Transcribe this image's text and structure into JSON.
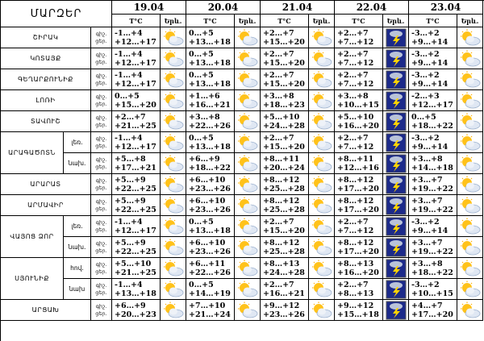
{
  "header": {
    "title": "ՄԱՐԶԵՐ",
    "dates": [
      "19.04",
      "20.04",
      "21.04",
      "22.04",
      "23.04"
    ],
    "temp_label": "T°C",
    "icon_label": "Երև.",
    "period_labels": [
      "գիշ.",
      "ցեր."
    ]
  },
  "regions": [
    {
      "name": "ՇԻՐԱԿ",
      "rows": [
        {
          "forecast": [
            [
              "-1…+4",
              "+12…+17"
            ],
            [
              "0…+5",
              "+13…+18"
            ],
            [
              "+2…+7",
              "+15…+20"
            ],
            [
              "+2…+7",
              "+7…+12"
            ],
            [
              "-3…+2",
              "+9…+14"
            ]
          ]
        }
      ]
    },
    {
      "name": "ԿՈՏԱՅՔ",
      "rows": [
        {
          "forecast": [
            [
              "-1…+4",
              "+12…+17"
            ],
            [
              "0…+5",
              "+13…+18"
            ],
            [
              "+2…+7",
              "+15…+20"
            ],
            [
              "+2…+7",
              "+7…+12"
            ],
            [
              "-3…+2",
              "+9…+14"
            ]
          ]
        }
      ]
    },
    {
      "name": "ԳԵՂԱՐՔՈՒՆԻՔ",
      "rows": [
        {
          "forecast": [
            [
              "-1…+4",
              "+12…+17"
            ],
            [
              "0…+5",
              "+13…+18"
            ],
            [
              "+2…+7",
              "+15…+20"
            ],
            [
              "+2…+7",
              "+7…+12"
            ],
            [
              "-3…+2",
              "+9…+14"
            ]
          ]
        }
      ]
    },
    {
      "name": "ԼՈՌԻ",
      "rows": [
        {
          "forecast": [
            [
              "0…+5",
              "+15…+20"
            ],
            [
              "+1…+6",
              "+16…+21"
            ],
            [
              "+3…+8",
              "+18…+23"
            ],
            [
              "+3…+8",
              "+10…+15"
            ],
            [
              "-2…+3",
              "+12…+17"
            ]
          ]
        }
      ]
    },
    {
      "name": "ՏԱՎՈՒՇ",
      "rows": [
        {
          "forecast": [
            [
              "+2…+7",
              "+21…+25"
            ],
            [
              "+3…+8",
              "+22…+26"
            ],
            [
              "+5…+10",
              "+24…+28"
            ],
            [
              "+5…+10",
              "+16…+20"
            ],
            [
              "0…+5",
              "+18…+22"
            ]
          ]
        }
      ]
    },
    {
      "name": "ԱՐԱԳԱԾՈՏՆ",
      "rows": [
        {
          "zone": "լեռ.",
          "forecast": [
            [
              "-1…+4",
              "+12…+17"
            ],
            [
              "0…+5",
              "+13…+18"
            ],
            [
              "+2…+7",
              "+15…+20"
            ],
            [
              "+2…+7",
              "+7…+12"
            ],
            [
              "-3…+2",
              "+9…+14"
            ]
          ]
        },
        {
          "zone": "նախ.",
          "forecast": [
            [
              "+5…+8",
              "+17…+21"
            ],
            [
              "+6…+9",
              "+18…+22"
            ],
            [
              "+8…+11",
              "+20…+24"
            ],
            [
              "+8…+11",
              "+12…+16"
            ],
            [
              "+3…+8",
              "+14…+18"
            ]
          ]
        }
      ]
    },
    {
      "name": "ԱՐԱՐԱՏ",
      "rows": [
        {
          "forecast": [
            [
              "+5…+9",
              "+22…+25"
            ],
            [
              "+6…+10",
              "+23…+26"
            ],
            [
              "+8…+12",
              "+25…+28"
            ],
            [
              "+8…+12",
              "+17…+20"
            ],
            [
              "+3…+7",
              "+19…+22"
            ]
          ]
        }
      ]
    },
    {
      "name": "ԱՐՄԱՎԻՐ",
      "rows": [
        {
          "forecast": [
            [
              "+5…+9",
              "+22…+25"
            ],
            [
              "+6…+10",
              "+23…+26"
            ],
            [
              "+8…+12",
              "+25…+28"
            ],
            [
              "+8…+12",
              "+17…+20"
            ],
            [
              "+3…+7",
              "+19…+22"
            ]
          ]
        }
      ]
    },
    {
      "name": "ՎԱՅՈՑ ՁՈՐ",
      "rows": [
        {
          "zone": "լեռ.",
          "forecast": [
            [
              "-1…+4",
              "+12…+17"
            ],
            [
              "0…+5",
              "+13…+18"
            ],
            [
              "+2…+7",
              "+15…+20"
            ],
            [
              "+2…+7",
              "+7…+12"
            ],
            [
              "-3…+2",
              "+9…+14"
            ]
          ]
        },
        {
          "zone": "նախ.",
          "forecast": [
            [
              "+5…+9",
              "+22…+25"
            ],
            [
              "+6…+10",
              "+23…+26"
            ],
            [
              "+8…+12",
              "+25…+28"
            ],
            [
              "+8…+12",
              "+17…+20"
            ],
            [
              "+3…+7",
              "+19…+22"
            ]
          ]
        }
      ]
    },
    {
      "name": "ՍՅՈՒՆԻՔ",
      "rows": [
        {
          "zone": "հով.",
          "forecast": [
            [
              "+5…+10",
              "+21…+25"
            ],
            [
              "+6…+11",
              "+22…+26"
            ],
            [
              "+8…+13",
              "+24…+28"
            ],
            [
              "+8…+13",
              "+16…+20"
            ],
            [
              "+3…+8",
              "+18…+22"
            ]
          ]
        },
        {
          "zone": "նախ",
          "forecast": [
            [
              "-1…+4",
              "+13…+18"
            ],
            [
              "0…+5",
              "+14…+19"
            ],
            [
              "+2…+7",
              "+16…+21"
            ],
            [
              "+2…+7",
              "+8…+13"
            ],
            [
              "-3…+2",
              "+10…+15"
            ]
          ]
        }
      ]
    },
    {
      "name": "ԱՐՑԱԽ",
      "rows": [
        {
          "forecast": [
            [
              "+6…+9",
              "+20…+23"
            ],
            [
              "+7…+10",
              "+21…+24"
            ],
            [
              "+9…+12",
              "+23…+26"
            ],
            [
              "+9…+12",
              "+15…+18"
            ],
            [
              "+4…+7",
              "+17…+20"
            ]
          ]
        }
      ]
    }
  ]
}
